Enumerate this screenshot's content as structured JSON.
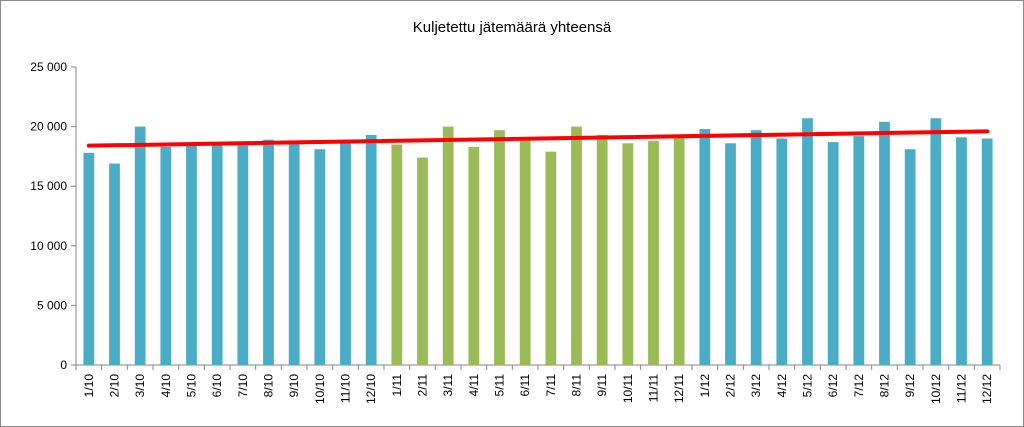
{
  "chart_data": {
    "type": "bar",
    "title": "Kuljetettu jätemäärä yhteensä",
    "xlabel": "",
    "ylabel": "",
    "ylim": [
      0,
      25000
    ],
    "yticks": [
      0,
      5000,
      10000,
      15000,
      20000,
      25000
    ],
    "ytick_labels": [
      "0",
      "5 000",
      "10 000",
      "15 000",
      "20 000",
      "25 000"
    ],
    "grid": false,
    "categories": [
      "1/10",
      "2/10",
      "3/10",
      "4/10",
      "5/10",
      "6/10",
      "7/10",
      "8/10",
      "9/10",
      "10/10",
      "11/10",
      "12/10",
      "1/11",
      "2/11",
      "3/11",
      "4/11",
      "5/11",
      "6/11",
      "7/11",
      "8/11",
      "9/11",
      "10/11",
      "11/11",
      "12/11",
      "1/12",
      "2/12",
      "3/12",
      "4/12",
      "5/12",
      "6/12",
      "7/12",
      "8/12",
      "9/12",
      "10/12",
      "11/12",
      "12/12"
    ],
    "values": [
      17800,
      16900,
      20000,
      18300,
      18400,
      18500,
      18500,
      18900,
      18800,
      18100,
      18700,
      19300,
      18500,
      17400,
      20000,
      18300,
      19700,
      18900,
      17900,
      20000,
      19300,
      18600,
      18800,
      19100,
      19800,
      18600,
      19700,
      19000,
      20700,
      18700,
      19200,
      20400,
      18100,
      20700,
      19100,
      19000
    ],
    "bar_colors": [
      "#4BACC6",
      "#4BACC6",
      "#4BACC6",
      "#4BACC6",
      "#4BACC6",
      "#4BACC6",
      "#4BACC6",
      "#4BACC6",
      "#4BACC6",
      "#4BACC6",
      "#4BACC6",
      "#4BACC6",
      "#9BBB59",
      "#9BBB59",
      "#9BBB59",
      "#9BBB59",
      "#9BBB59",
      "#9BBB59",
      "#9BBB59",
      "#9BBB59",
      "#9BBB59",
      "#9BBB59",
      "#9BBB59",
      "#9BBB59",
      "#4BACC6",
      "#4BACC6",
      "#4BACC6",
      "#4BACC6",
      "#4BACC6",
      "#4BACC6",
      "#4BACC6",
      "#4BACC6",
      "#4BACC6",
      "#4BACC6",
      "#4BACC6",
      "#4BACC6"
    ],
    "trendline": {
      "type": "linear",
      "color": "#FF0000",
      "start": 18400,
      "end": 19600
    }
  }
}
